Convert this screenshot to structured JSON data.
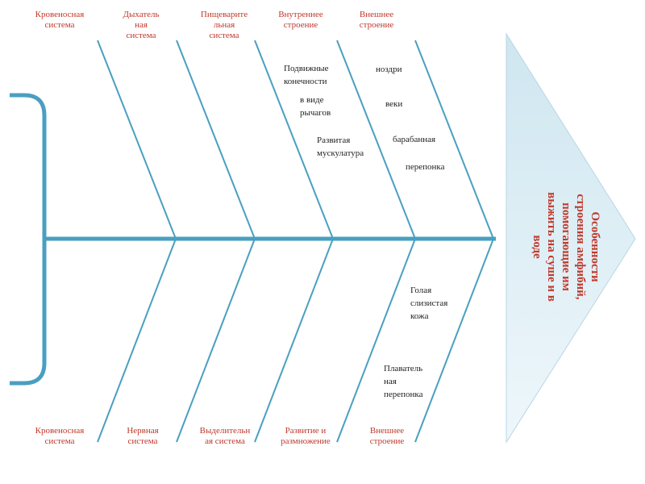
{
  "colors": {
    "bone": "#4a9fc0",
    "label": "#c0392b",
    "note": "#222222",
    "head_top": "#cfe6f0",
    "head_bottom": "#eef7fb"
  },
  "head": {
    "text": "Особенности\nстроения амфибий,\nпомогающие им\nвыжить на суше и в\nводе"
  },
  "top_categories": [
    {
      "label": "Кровеносная\nсистема"
    },
    {
      "label": "Дыхатель\nная\nсистема"
    },
    {
      "label": "Пищеварите\nльная\nсистема"
    },
    {
      "label": "Внутреннее\nстроение"
    },
    {
      "label": "Внешнее\nстроение"
    }
  ],
  "bottom_categories": [
    {
      "label": "Кровеносная\nсистема"
    },
    {
      "label": "Нервная\nсистема"
    },
    {
      "label": "Выделительн\nая система"
    },
    {
      "label": "Развитие и\nразмножение"
    },
    {
      "label": "Внешнее\nстроение"
    }
  ],
  "notes": [
    {
      "text": "Подвижные\nконечности"
    },
    {
      "text": "в виде\nрычагов"
    },
    {
      "text": "Развитая\nмускулатура"
    },
    {
      "text": "ноздри"
    },
    {
      "text": "веки"
    },
    {
      "text": "барабанная"
    },
    {
      "text": "перепонка"
    },
    {
      "text": "Голая\nслизистая\nкожа"
    },
    {
      "text": "Плаватель\nная\nперепонка"
    }
  ]
}
